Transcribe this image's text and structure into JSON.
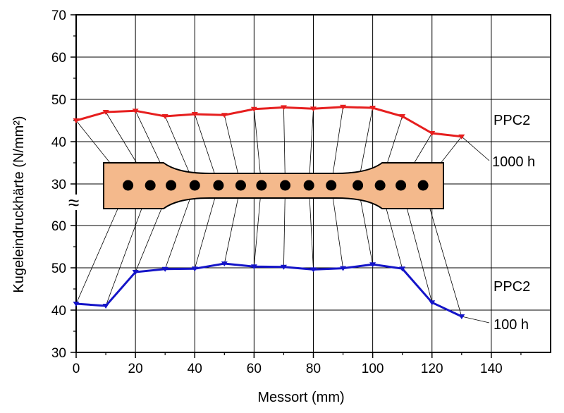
{
  "chart_data": {
    "type": "line",
    "xlabel": "Messort (mm)",
    "ylabel": "Kugeleindruckhärte  (N/mm²)",
    "x_ticks": [
      "0",
      "20",
      "40",
      "60",
      "80",
      "100",
      "120",
      "140"
    ],
    "y_ticks_upper": [
      "30",
      "40",
      "50",
      "60",
      "70"
    ],
    "y_ticks_lower": [
      "30",
      "40",
      "50",
      "60"
    ],
    "axis_break_symbol": "≈",
    "xlim": [
      0,
      160
    ],
    "ylim_upper": [
      30,
      70
    ],
    "ylim_lower": [
      30,
      60
    ],
    "grid": true,
    "colors": {
      "upper": "#e61e1e",
      "lower": "#1414c8",
      "specimen": "#f4b98c"
    },
    "series": [
      {
        "name": "1000 h",
        "group_label": "PPC2",
        "panel": "upper",
        "x": [
          0,
          10,
          20,
          30,
          40,
          50,
          60,
          70,
          80,
          90,
          100,
          110,
          120,
          130
        ],
        "y": [
          45.0,
          47.0,
          47.3,
          46.0,
          46.5,
          46.3,
          47.7,
          48.1,
          47.8,
          48.2,
          48.0,
          46.0,
          42.0,
          41.2
        ]
      },
      {
        "name": "100 h",
        "group_label": "PPC2",
        "panel": "lower",
        "x": [
          0,
          10,
          20,
          30,
          40,
          50,
          60,
          70,
          80,
          90,
          100,
          110,
          120,
          130
        ],
        "y": [
          41.5,
          41.0,
          49.0,
          49.7,
          49.8,
          51.0,
          50.3,
          50.2,
          49.6,
          49.9,
          50.8,
          49.8,
          41.8,
          38.5
        ]
      }
    ],
    "specimen_points_mm": [
      17.5,
      25,
      32,
      40,
      48,
      55.5,
      62.5,
      70.5,
      78.5,
      86,
      95,
      102.5,
      109.5,
      117
    ]
  }
}
